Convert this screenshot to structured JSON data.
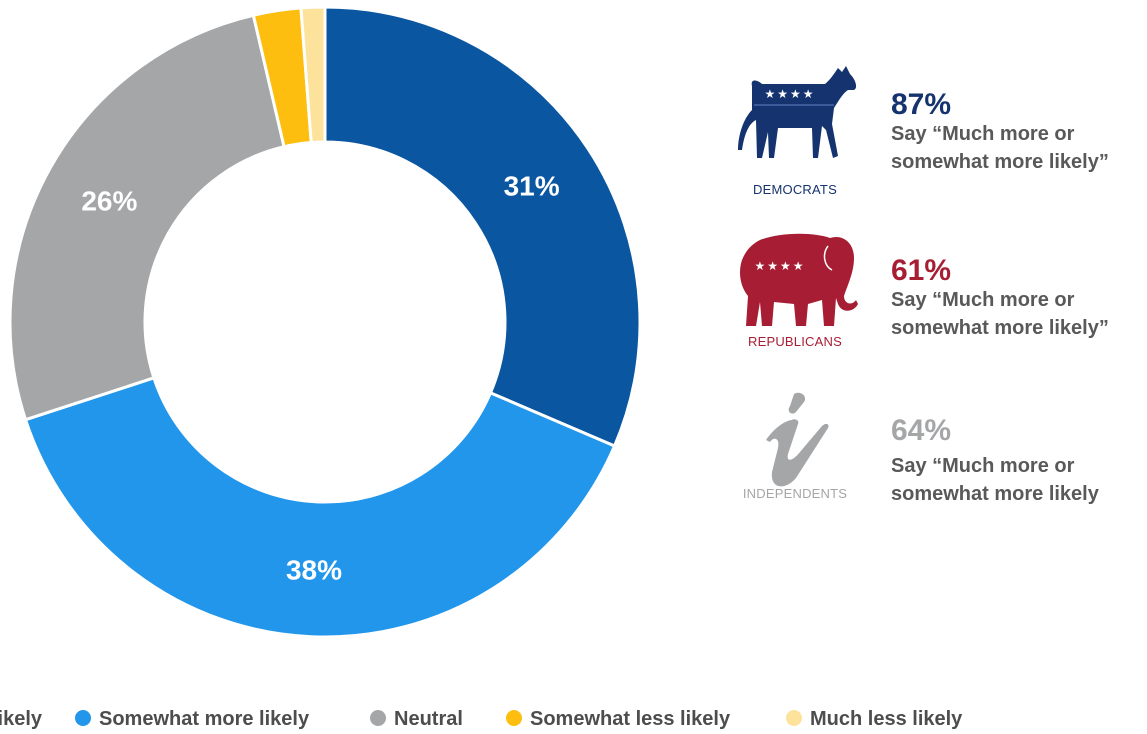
{
  "chart_data": {
    "type": "pie",
    "style": "donut",
    "categories": [
      "Much more likely",
      "Somewhat more likely",
      "Neutral",
      "Somewhat less likely",
      "Much less likely"
    ],
    "values": [
      31,
      38,
      26,
      2.4,
      1.2
    ],
    "data_labels": [
      "31%",
      "38%",
      "26%",
      "",
      ""
    ],
    "colors": [
      "#0b56a0",
      "#2196eb",
      "#a5a6a8",
      "#fdbe10",
      "#fde29b"
    ],
    "legend": [
      "Much more likely",
      "Somewhat more likely",
      "Neutral",
      "Somewhat less likely",
      "Much less likely"
    ],
    "legend_visible": [
      "likely",
      "Somewhat more likely",
      "Neutral",
      "Somewhat less likely",
      "Much less likely"
    ],
    "legend_position": "bottom"
  },
  "parties": [
    {
      "label": "DEMOCRATS",
      "percent": "87%",
      "say": "Say “Much more or somewhat more likely”",
      "color": "#15336e",
      "icon": "donkey-icon"
    },
    {
      "label": "REPUBLICANS",
      "percent": "61%",
      "say": "Say “Much more or somewhat more likely”",
      "color": "#a71e34",
      "icon": "elephant-icon"
    },
    {
      "label": "INDEPENDENTS",
      "percent": "64%",
      "say": "Say “Much more or somewhat more likely",
      "color": "#a5a6a8",
      "icon": "independent-i-icon"
    }
  ]
}
